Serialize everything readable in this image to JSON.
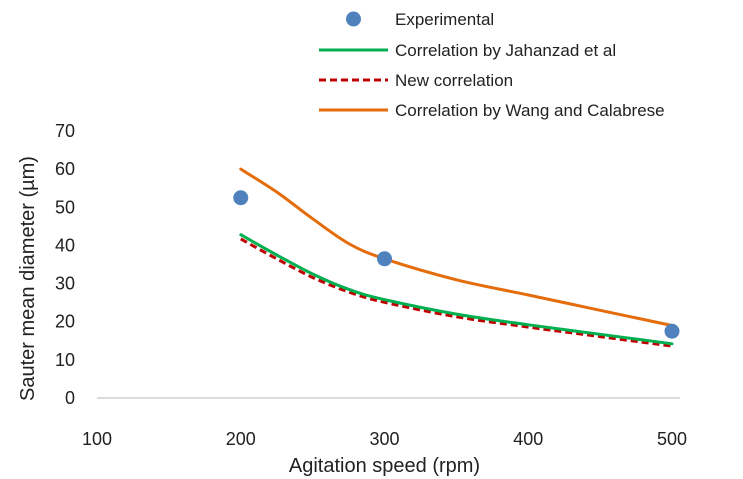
{
  "chart_data": {
    "type": "line",
    "title": "",
    "xlabel": "Agitation speed (rpm)",
    "ylabel": "Sauter mean diameter (µm)",
    "xlim": [
      100,
      500
    ],
    "ylim": [
      0,
      70
    ],
    "xticks": [
      100,
      200,
      300,
      400,
      500
    ],
    "yticks": [
      0,
      10,
      20,
      30,
      40,
      50,
      60,
      70
    ],
    "grid": false,
    "legend_position": "top",
    "series": [
      {
        "name": "Experimental",
        "kind": "scatter",
        "color": "#4f81bd",
        "x": [
          200,
          300,
          500
        ],
        "y": [
          52.5,
          36.5,
          17.5
        ]
      },
      {
        "name": "Correlation by Jahanzad et al",
        "kind": "line",
        "style": "solid",
        "color": "#00b050",
        "x": [
          200,
          225,
          250,
          275,
          300,
          350,
          400,
          450,
          500
        ],
        "y": [
          42.8,
          37.5,
          32.5,
          28.5,
          25.8,
          22.0,
          19.2,
          16.7,
          14.2
        ]
      },
      {
        "name": "New correlation",
        "kind": "line",
        "style": "dashed",
        "color": "#c00000",
        "x": [
          200,
          225,
          250,
          275,
          300,
          350,
          400,
          450,
          500
        ],
        "y": [
          41.7,
          36.5,
          31.6,
          27.8,
          25.1,
          21.3,
          18.6,
          16.1,
          13.6
        ]
      },
      {
        "name": "Correlation by Wang and Calabrese",
        "kind": "line",
        "style": "solid",
        "color": "#e46c0a",
        "x": [
          200,
          225,
          250,
          275,
          300,
          350,
          400,
          450,
          500
        ],
        "y": [
          60.0,
          54.0,
          47.0,
          40.5,
          36.5,
          31.0,
          27.0,
          23.0,
          19.0
        ]
      }
    ]
  }
}
